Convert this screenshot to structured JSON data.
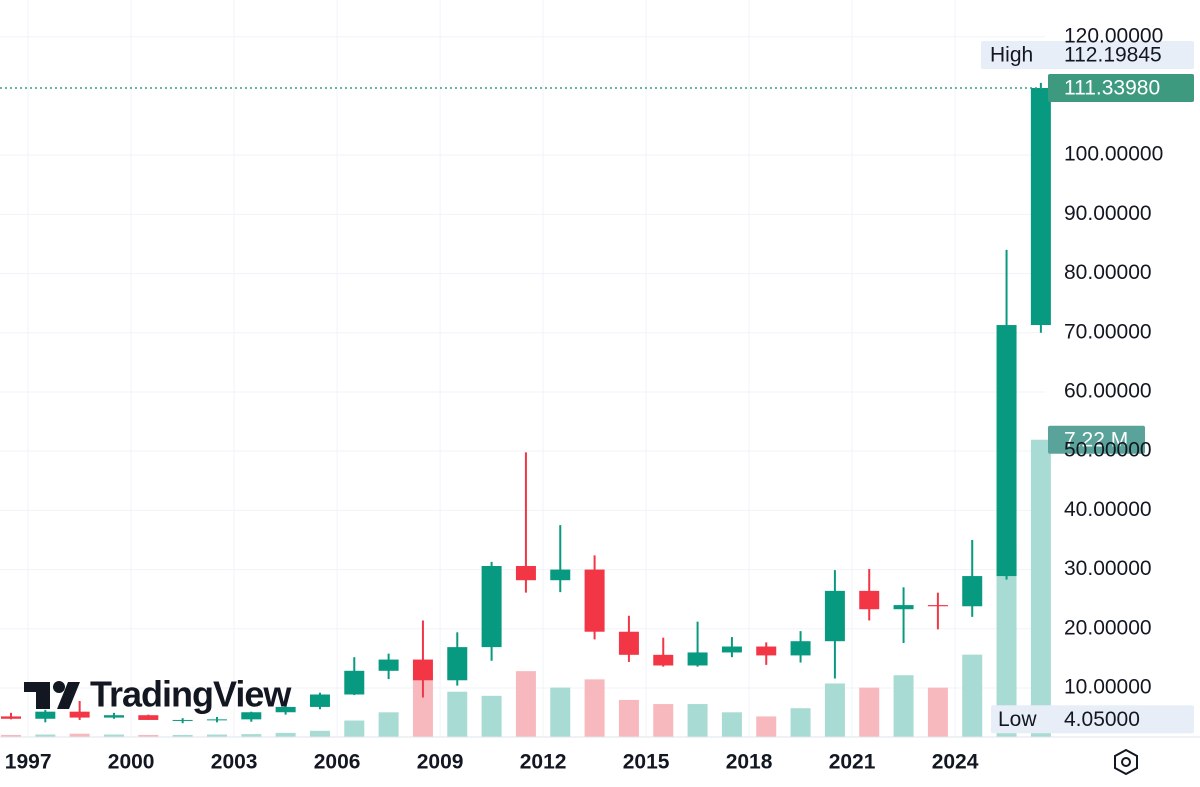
{
  "chart_data": {
    "type": "candlestick",
    "watermark": "TradingView",
    "x": [
      1996,
      1997,
      1998,
      1999,
      2000,
      2001,
      2002,
      2003,
      2004,
      2005,
      2006,
      2007,
      2008,
      2009,
      2010,
      2011,
      2012,
      2013,
      2014,
      2015,
      2016,
      2017,
      2018,
      2019,
      2020,
      2021,
      2022,
      2023,
      2024,
      2025,
      2026
    ],
    "open": [
      5.2,
      4.8,
      6.0,
      5.0,
      5.4,
      4.6,
      4.6,
      4.7,
      5.9,
      6.8,
      8.9,
      12.9,
      14.8,
      11.3,
      16.9,
      30.6,
      28.2,
      30.0,
      19.5,
      15.6,
      13.8,
      16.0,
      17.0,
      15.5,
      17.9,
      26.4,
      23.3,
      24.0,
      23.8,
      28.9,
      71.3
    ],
    "high": [
      5.8,
      6.3,
      7.8,
      5.8,
      5.5,
      4.9,
      5.1,
      6.0,
      8.4,
      9.2,
      15.2,
      15.8,
      21.4,
      19.4,
      31.3,
      49.8,
      37.5,
      32.4,
      22.2,
      18.5,
      21.2,
      18.6,
      17.7,
      19.6,
      29.9,
      30.1,
      27.0,
      26.1,
      35.0,
      84.0,
      112.19845
    ],
    "low": [
      4.7,
      4.2,
      4.6,
      4.8,
      4.6,
      4.05,
      4.2,
      4.3,
      5.5,
      6.4,
      8.8,
      11.5,
      8.4,
      10.4,
      14.6,
      26.1,
      26.2,
      18.2,
      14.4,
      13.6,
      13.6,
      15.2,
      13.9,
      14.3,
      11.6,
      21.4,
      17.6,
      19.9,
      22.0,
      28.3,
      70.0
    ],
    "close": [
      4.8,
      6.0,
      5.0,
      5.4,
      4.6,
      4.6,
      4.7,
      5.9,
      6.8,
      8.9,
      12.9,
      14.8,
      11.3,
      16.9,
      30.6,
      28.2,
      30.0,
      19.5,
      15.6,
      13.8,
      16.0,
      17.0,
      15.5,
      17.9,
      26.4,
      23.3,
      24.0,
      23.8,
      28.9,
      71.3,
      111.3398
    ],
    "up_color": "#089981",
    "down_color": "#f23645",
    "volume": {
      "values": [
        0.05,
        0.06,
        0.08,
        0.06,
        0.05,
        0.05,
        0.06,
        0.07,
        0.1,
        0.15,
        0.4,
        0.6,
        1.5,
        1.1,
        1.0,
        1.6,
        1.2,
        1.4,
        0.9,
        0.8,
        0.8,
        0.6,
        0.5,
        0.7,
        1.3,
        1.2,
        1.5,
        1.2,
        2.0,
        4.6,
        7.22
      ],
      "value_labels": [
        null,
        null,
        null,
        null,
        null,
        null,
        null,
        null,
        null,
        null,
        null,
        null,
        null,
        null,
        null,
        null,
        null,
        null,
        null,
        null,
        null,
        null,
        null,
        null,
        null,
        null,
        null,
        null,
        null,
        null,
        "7.22 M"
      ],
      "up_color": "#a8dbd3",
      "down_color": "#f8b9be",
      "label_color": "#5aa39a"
    },
    "vlim": [
      0,
      17.9
    ],
    "xlim": [
      1996.18,
      2026.62
    ],
    "xticks": [
      1997,
      2000,
      2003,
      2006,
      2009,
      2012,
      2015,
      2018,
      2021,
      2024
    ],
    "ylim": [
      1.72,
      126.2
    ],
    "yticks": [
      {
        "value": 10,
        "label": "10.00000"
      },
      {
        "value": 20,
        "label": "20.00000"
      },
      {
        "value": 30,
        "label": "30.00000"
      },
      {
        "value": 40,
        "label": "40.00000"
      },
      {
        "value": 50,
        "label": "50.00000"
      },
      {
        "value": 60,
        "label": "60.00000"
      },
      {
        "value": 70,
        "label": "70.00000"
      },
      {
        "value": 80,
        "label": "80.00000"
      },
      {
        "value": 90,
        "label": "90.00000"
      },
      {
        "value": 100,
        "label": "100.00000"
      },
      {
        "value": 120,
        "label": "120.00000"
      }
    ],
    "grid": true,
    "last_price": {
      "value": 111.3398,
      "label": "111.33980",
      "color": "#3d9a7e"
    },
    "high_marker": {
      "text": "High",
      "value": 112.19845
    },
    "low_marker": {
      "text": "Low",
      "value": 4.05,
      "value_label": "4.05000"
    }
  }
}
